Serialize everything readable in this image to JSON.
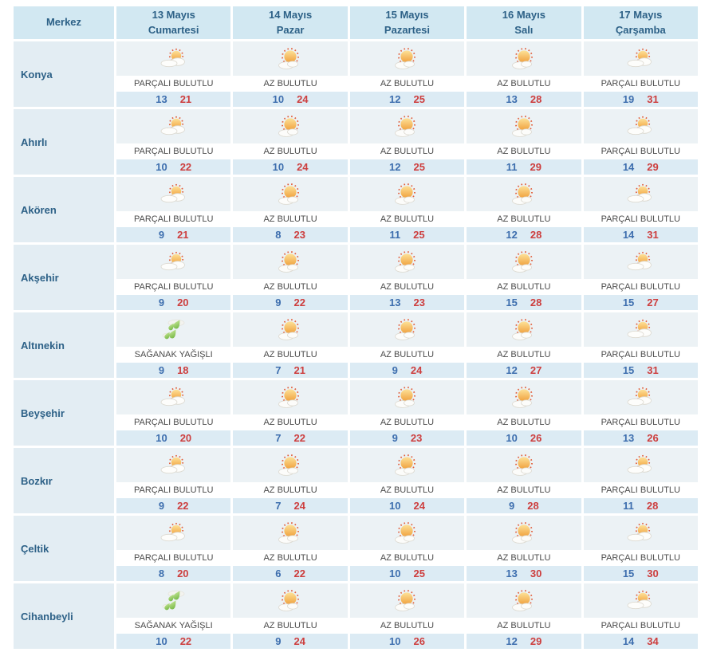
{
  "colors": {
    "header_bg": "#d2e8f2",
    "header_text": "#2d6187",
    "icon_row_bg": "#ecf2f5",
    "temps_row_bg": "#dcebf4",
    "min_temp": "#3d6eae",
    "max_temp": "#cd3e3e"
  },
  "header": {
    "location_column_label": "Merkez",
    "days": [
      {
        "date": "13 Mayıs",
        "weekday": "Cumartesi"
      },
      {
        "date": "14 Mayıs",
        "weekday": "Pazar"
      },
      {
        "date": "15 Mayıs",
        "weekday": "Pazartesi"
      },
      {
        "date": "16 Mayıs",
        "weekday": "Salı"
      },
      {
        "date": "17 Mayıs",
        "weekday": "Çarşamba"
      }
    ]
  },
  "rows": [
    {
      "name": "Konya",
      "forecasts": [
        {
          "icon": "partly-cloudy",
          "condition": "PARÇALI BULUTLU",
          "min": "13",
          "max": "21"
        },
        {
          "icon": "slightly-cloudy",
          "condition": "AZ BULUTLU",
          "min": "10",
          "max": "24"
        },
        {
          "icon": "slightly-cloudy",
          "condition": "AZ BULUTLU",
          "min": "12",
          "max": "25"
        },
        {
          "icon": "slightly-cloudy",
          "condition": "AZ BULUTLU",
          "min": "13",
          "max": "28"
        },
        {
          "icon": "partly-cloudy",
          "condition": "PARÇALI BULUTLU",
          "min": "19",
          "max": "31"
        }
      ]
    },
    {
      "name": "Ahırlı",
      "forecasts": [
        {
          "icon": "partly-cloudy",
          "condition": "PARÇALI BULUTLU",
          "min": "10",
          "max": "22"
        },
        {
          "icon": "slightly-cloudy",
          "condition": "AZ BULUTLU",
          "min": "10",
          "max": "24"
        },
        {
          "icon": "slightly-cloudy",
          "condition": "AZ BULUTLU",
          "min": "12",
          "max": "25"
        },
        {
          "icon": "slightly-cloudy",
          "condition": "AZ BULUTLU",
          "min": "11",
          "max": "29"
        },
        {
          "icon": "partly-cloudy",
          "condition": "PARÇALI BULUTLU",
          "min": "14",
          "max": "29"
        }
      ]
    },
    {
      "name": "Akören",
      "forecasts": [
        {
          "icon": "partly-cloudy",
          "condition": "PARÇALI BULUTLU",
          "min": "9",
          "max": "21"
        },
        {
          "icon": "slightly-cloudy",
          "condition": "AZ BULUTLU",
          "min": "8",
          "max": "23"
        },
        {
          "icon": "slightly-cloudy",
          "condition": "AZ BULUTLU",
          "min": "11",
          "max": "25"
        },
        {
          "icon": "slightly-cloudy",
          "condition": "AZ BULUTLU",
          "min": "12",
          "max": "28"
        },
        {
          "icon": "partly-cloudy",
          "condition": "PARÇALI BULUTLU",
          "min": "14",
          "max": "31"
        }
      ]
    },
    {
      "name": "Akşehir",
      "forecasts": [
        {
          "icon": "partly-cloudy",
          "condition": "PARÇALI BULUTLU",
          "min": "9",
          "max": "20"
        },
        {
          "icon": "slightly-cloudy",
          "condition": "AZ BULUTLU",
          "min": "9",
          "max": "22"
        },
        {
          "icon": "slightly-cloudy",
          "condition": "AZ BULUTLU",
          "min": "13",
          "max": "23"
        },
        {
          "icon": "slightly-cloudy",
          "condition": "AZ BULUTLU",
          "min": "15",
          "max": "28"
        },
        {
          "icon": "partly-cloudy",
          "condition": "PARÇALI BULUTLU",
          "min": "15",
          "max": "27"
        }
      ]
    },
    {
      "name": "Altınekin",
      "forecasts": [
        {
          "icon": "rain-showers",
          "condition": "SAĞANAK YAĞIŞLI",
          "min": "9",
          "max": "18"
        },
        {
          "icon": "slightly-cloudy",
          "condition": "AZ BULUTLU",
          "min": "7",
          "max": "21"
        },
        {
          "icon": "slightly-cloudy",
          "condition": "AZ BULUTLU",
          "min": "9",
          "max": "24"
        },
        {
          "icon": "slightly-cloudy",
          "condition": "AZ BULUTLU",
          "min": "12",
          "max": "27"
        },
        {
          "icon": "partly-cloudy",
          "condition": "PARÇALI BULUTLU",
          "min": "15",
          "max": "31"
        }
      ]
    },
    {
      "name": "Beyşehir",
      "forecasts": [
        {
          "icon": "partly-cloudy",
          "condition": "PARÇALI BULUTLU",
          "min": "10",
          "max": "20"
        },
        {
          "icon": "slightly-cloudy",
          "condition": "AZ BULUTLU",
          "min": "7",
          "max": "22"
        },
        {
          "icon": "slightly-cloudy",
          "condition": "AZ BULUTLU",
          "min": "9",
          "max": "23"
        },
        {
          "icon": "slightly-cloudy",
          "condition": "AZ BULUTLU",
          "min": "10",
          "max": "26"
        },
        {
          "icon": "partly-cloudy",
          "condition": "PARÇALI BULUTLU",
          "min": "13",
          "max": "26"
        }
      ]
    },
    {
      "name": "Bozkır",
      "forecasts": [
        {
          "icon": "partly-cloudy",
          "condition": "PARÇALI BULUTLU",
          "min": "9",
          "max": "22"
        },
        {
          "icon": "slightly-cloudy",
          "condition": "AZ BULUTLU",
          "min": "7",
          "max": "24"
        },
        {
          "icon": "slightly-cloudy",
          "condition": "AZ BULUTLU",
          "min": "10",
          "max": "24"
        },
        {
          "icon": "slightly-cloudy",
          "condition": "AZ BULUTLU",
          "min": "9",
          "max": "28"
        },
        {
          "icon": "partly-cloudy",
          "condition": "PARÇALI BULUTLU",
          "min": "11",
          "max": "28"
        }
      ]
    },
    {
      "name": "Çeltik",
      "forecasts": [
        {
          "icon": "partly-cloudy",
          "condition": "PARÇALI BULUTLU",
          "min": "8",
          "max": "20"
        },
        {
          "icon": "slightly-cloudy",
          "condition": "AZ BULUTLU",
          "min": "6",
          "max": "22"
        },
        {
          "icon": "slightly-cloudy",
          "condition": "AZ BULUTLU",
          "min": "10",
          "max": "25"
        },
        {
          "icon": "slightly-cloudy",
          "condition": "AZ BULUTLU",
          "min": "13",
          "max": "30"
        },
        {
          "icon": "partly-cloudy",
          "condition": "PARÇALI BULUTLU",
          "min": "15",
          "max": "30"
        }
      ]
    },
    {
      "name": "Cihanbeyli",
      "forecasts": [
        {
          "icon": "rain-showers",
          "condition": "SAĞANAK YAĞIŞLI",
          "min": "10",
          "max": "22"
        },
        {
          "icon": "slightly-cloudy",
          "condition": "AZ BULUTLU",
          "min": "9",
          "max": "24"
        },
        {
          "icon": "slightly-cloudy",
          "condition": "AZ BULUTLU",
          "min": "10",
          "max": "26"
        },
        {
          "icon": "slightly-cloudy",
          "condition": "AZ BULUTLU",
          "min": "12",
          "max": "29"
        },
        {
          "icon": "partly-cloudy",
          "condition": "PARÇALI BULUTLU",
          "min": "14",
          "max": "34"
        }
      ]
    }
  ]
}
